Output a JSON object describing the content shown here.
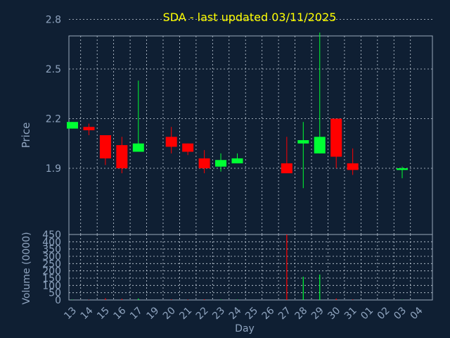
{
  "colors": {
    "background": "#0f1f33",
    "frame": "#9aa9bb",
    "grid": "#c7d2de",
    "axis_text": "#8fa4bf",
    "title": "#ffff00",
    "up": "#00ff33",
    "down": "#ff0000"
  },
  "chart_data": [
    {
      "type": "candlestick",
      "title": "SDA - last updated 03/11/2025",
      "ylabel": "Price",
      "xlabel": "Day",
      "ylim": [
        1.5,
        2.7
      ],
      "y_ticks": [
        "1.9",
        "2.2",
        "2.5",
        "2.8"
      ],
      "grid": true,
      "x": [
        "13",
        "14",
        "15",
        "16",
        "17",
        "19",
        "20",
        "21",
        "22",
        "23",
        "24",
        "25",
        "26",
        "27",
        "28",
        "29",
        "30",
        "31",
        "01",
        "02",
        "03",
        "04"
      ],
      "candles": [
        {
          "day": "13",
          "open": 2.14,
          "close": 2.18,
          "high": 2.18,
          "low": 2.14
        },
        {
          "day": "14",
          "open": 2.15,
          "close": 2.13,
          "high": 2.17,
          "low": 2.1
        },
        {
          "day": "15",
          "open": 2.1,
          "close": 1.96,
          "high": 2.1,
          "low": 1.92
        },
        {
          "day": "16",
          "open": 2.04,
          "close": 1.9,
          "high": 2.09,
          "low": 1.87
        },
        {
          "day": "17",
          "open": 2.0,
          "close": 2.05,
          "high": 2.43,
          "low": 2.0
        },
        {
          "day": "20",
          "open": 2.09,
          "close": 2.03,
          "high": 2.15,
          "low": 1.99
        },
        {
          "day": "21",
          "open": 2.05,
          "close": 2.0,
          "high": 2.05,
          "low": 1.98
        },
        {
          "day": "22",
          "open": 1.96,
          "close": 1.9,
          "high": 2.01,
          "low": 1.87
        },
        {
          "day": "23",
          "open": 1.91,
          "close": 1.95,
          "high": 1.99,
          "low": 1.88
        },
        {
          "day": "24",
          "open": 1.93,
          "close": 1.96,
          "high": 1.99,
          "low": 1.93
        },
        {
          "day": "27",
          "open": 1.93,
          "close": 1.87,
          "high": 2.09,
          "low": 1.87
        },
        {
          "day": "28",
          "open": 2.05,
          "close": 2.07,
          "high": 2.18,
          "low": 1.78
        },
        {
          "day": "29",
          "open": 1.99,
          "close": 2.09,
          "high": 2.72,
          "low": 1.99
        },
        {
          "day": "30",
          "open": 2.2,
          "close": 1.97,
          "high": 2.2,
          "low": 1.9
        },
        {
          "day": "31",
          "open": 1.93,
          "close": 1.89,
          "high": 2.02,
          "low": 1.86
        },
        {
          "day": "03",
          "open": 1.89,
          "close": 1.9,
          "high": 1.91,
          "low": 1.84
        }
      ]
    },
    {
      "type": "bar",
      "ylabel": "Volume (0000)",
      "ylim": [
        0,
        450
      ],
      "y_ticks": [
        "0",
        "50",
        "100",
        "150",
        "200",
        "250",
        "300",
        "350",
        "400",
        "450"
      ],
      "grid": true,
      "bars": [
        {
          "day": "13",
          "value": 3,
          "direction": "up"
        },
        {
          "day": "14",
          "value": 2,
          "direction": "down"
        },
        {
          "day": "15",
          "value": 12,
          "direction": "down"
        },
        {
          "day": "16",
          "value": 8,
          "direction": "down"
        },
        {
          "day": "17",
          "value": 10,
          "direction": "up"
        },
        {
          "day": "20",
          "value": 4,
          "direction": "down"
        },
        {
          "day": "21",
          "value": 3,
          "direction": "down"
        },
        {
          "day": "22",
          "value": 5,
          "direction": "down"
        },
        {
          "day": "23",
          "value": 3,
          "direction": "up"
        },
        {
          "day": "24",
          "value": 3,
          "direction": "up"
        },
        {
          "day": "27",
          "value": 450,
          "direction": "down"
        },
        {
          "day": "28",
          "value": 160,
          "direction": "up"
        },
        {
          "day": "29",
          "value": 175,
          "direction": "up"
        },
        {
          "day": "30",
          "value": 10,
          "direction": "down"
        },
        {
          "day": "31",
          "value": 4,
          "direction": "down"
        },
        {
          "day": "03",
          "value": 2,
          "direction": "up"
        }
      ]
    }
  ]
}
